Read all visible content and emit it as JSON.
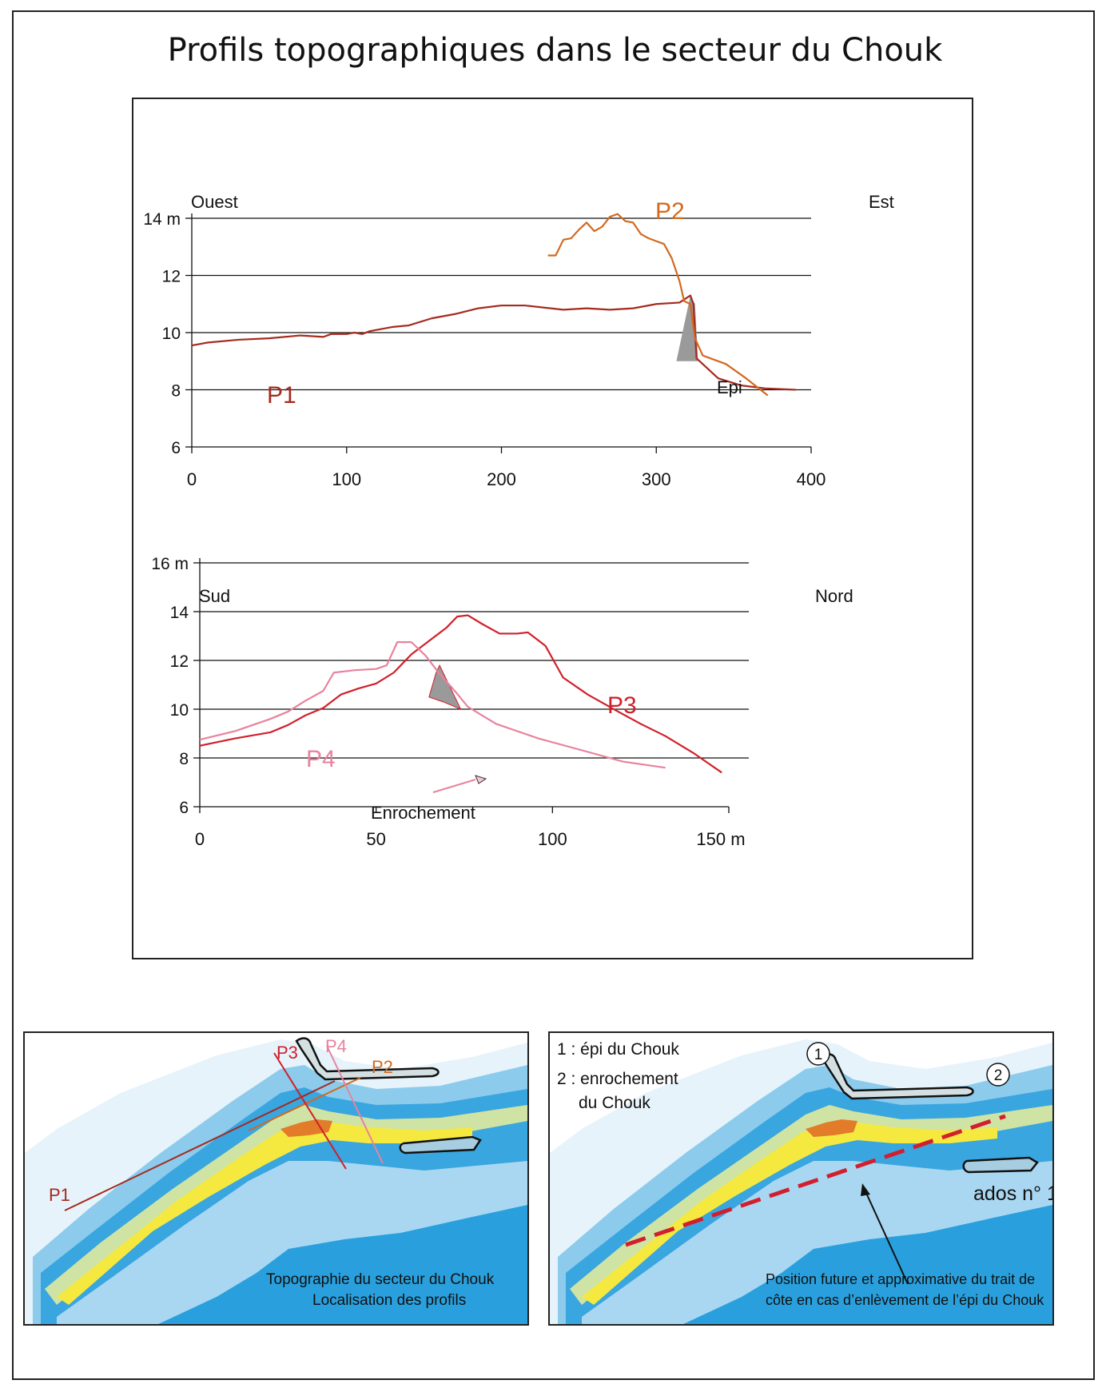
{
  "title": "Profils topographiques dans le secteur du Chouk",
  "chart_data": [
    {
      "type": "line",
      "direction_left": "Ouest",
      "direction_right": "Est",
      "y_unit": "m",
      "x_ticks": [
        "0",
        "100",
        "200",
        "300",
        "400"
      ],
      "y_ticks": [
        "6",
        "8",
        "10",
        "12",
        "14 m"
      ],
      "xlim": [
        0,
        400
      ],
      "ylim": [
        6,
        14
      ],
      "grid": "horizontal",
      "annotation": "Epi",
      "structure_polygon": [
        [
          313,
          9.0
        ],
        [
          322,
          11.3
        ],
        [
          325,
          11.0
        ],
        [
          327,
          9.0
        ]
      ],
      "series": [
        {
          "name": "P1",
          "color": "#a52a1e",
          "points": [
            [
              0,
              9.55
            ],
            [
              10,
              9.65
            ],
            [
              30,
              9.75
            ],
            [
              50,
              9.8
            ],
            [
              70,
              9.9
            ],
            [
              85,
              9.85
            ],
            [
              90,
              9.95
            ],
            [
              100,
              9.95
            ],
            [
              105,
              10.0
            ],
            [
              110,
              9.95
            ],
            [
              115,
              10.05
            ],
            [
              130,
              10.2
            ],
            [
              140,
              10.25
            ],
            [
              155,
              10.5
            ],
            [
              170,
              10.65
            ],
            [
              185,
              10.85
            ],
            [
              200,
              10.95
            ],
            [
              215,
              10.95
            ],
            [
              240,
              10.8
            ],
            [
              255,
              10.85
            ],
            [
              270,
              10.8
            ],
            [
              285,
              10.85
            ],
            [
              300,
              11.0
            ],
            [
              315,
              11.05
            ],
            [
              322,
              11.3
            ],
            [
              324,
              11.0
            ],
            [
              326,
              9.1
            ],
            [
              340,
              8.4
            ],
            [
              355,
              8.15
            ],
            [
              370,
              8.05
            ],
            [
              390,
              8.0
            ]
          ]
        },
        {
          "name": "P2",
          "color": "#d2691e",
          "points": [
            [
              230,
              12.7
            ],
            [
              235,
              12.7
            ],
            [
              240,
              13.25
            ],
            [
              245,
              13.3
            ],
            [
              250,
              13.6
            ],
            [
              255,
              13.85
            ],
            [
              260,
              13.55
            ],
            [
              265,
              13.7
            ],
            [
              270,
              14.05
            ],
            [
              275,
              14.15
            ],
            [
              280,
              13.9
            ],
            [
              285,
              13.85
            ],
            [
              290,
              13.45
            ],
            [
              295,
              13.3
            ],
            [
              300,
              13.2
            ],
            [
              305,
              13.1
            ],
            [
              310,
              12.6
            ],
            [
              315,
              11.8
            ],
            [
              318,
              11.1
            ],
            [
              322,
              11.0
            ],
            [
              325,
              9.8
            ],
            [
              330,
              9.2
            ],
            [
              345,
              8.9
            ],
            [
              358,
              8.4
            ],
            [
              372,
              7.8
            ]
          ]
        }
      ]
    },
    {
      "type": "line",
      "direction_left": "Sud",
      "direction_right": "Nord",
      "y_unit": "m",
      "x_ticks": [
        "0",
        "50",
        "100",
        "150 m"
      ],
      "y_ticks": [
        "6",
        "8",
        "10",
        "12",
        "14",
        "16 m"
      ],
      "xlim": [
        0,
        150
      ],
      "ylim": [
        6,
        16
      ],
      "grid": "horizontal",
      "annotation": "Enrochement",
      "structure_polygon": [
        [
          65,
          10.5
        ],
        [
          67,
          11.5
        ],
        [
          68,
          11.8
        ],
        [
          71,
          10.9
        ],
        [
          74,
          10.0
        ],
        [
          69,
          10.3
        ]
      ],
      "series": [
        {
          "name": "P3",
          "color": "#d11f2a",
          "points": [
            [
              0,
              8.5
            ],
            [
              10,
              8.8
            ],
            [
              20,
              9.05
            ],
            [
              25,
              9.35
            ],
            [
              30,
              9.75
            ],
            [
              35,
              10.05
            ],
            [
              40,
              10.6
            ],
            [
              45,
              10.85
            ],
            [
              50,
              11.05
            ],
            [
              55,
              11.5
            ],
            [
              60,
              12.25
            ],
            [
              65,
              12.8
            ],
            [
              70,
              13.35
            ],
            [
              73,
              13.8
            ],
            [
              76,
              13.85
            ],
            [
              80,
              13.5
            ],
            [
              85,
              13.1
            ],
            [
              90,
              13.1
            ],
            [
              93,
              13.15
            ],
            [
              98,
              12.6
            ],
            [
              103,
              11.3
            ],
            [
              110,
              10.6
            ],
            [
              118,
              9.95
            ],
            [
              125,
              9.4
            ],
            [
              132,
              8.9
            ],
            [
              140,
              8.2
            ],
            [
              148,
              7.4
            ]
          ]
        },
        {
          "name": "P4",
          "color": "#e8829d",
          "points": [
            [
              0,
              8.75
            ],
            [
              10,
              9.1
            ],
            [
              20,
              9.6
            ],
            [
              25,
              9.9
            ],
            [
              30,
              10.35
            ],
            [
              35,
              10.75
            ],
            [
              38,
              11.5
            ],
            [
              44,
              11.6
            ],
            [
              50,
              11.65
            ],
            [
              53,
              11.8
            ],
            [
              56,
              12.75
            ],
            [
              60,
              12.75
            ],
            [
              64,
              12.2
            ],
            [
              68,
              11.45
            ],
            [
              72,
              10.8
            ],
            [
              76,
              10.1
            ],
            [
              84,
              9.4
            ],
            [
              96,
              8.8
            ],
            [
              110,
              8.25
            ],
            [
              120,
              7.85
            ],
            [
              132,
              7.6
            ]
          ]
        }
      ]
    }
  ],
  "map_left": {
    "labels": [
      "P1",
      "P2",
      "P3",
      "P4"
    ],
    "caption_line1": "Topographie du secteur du Chouk",
    "caption_line2": "Localisation des profils"
  },
  "map_right": {
    "legend_1": "1 : épi du Chouk",
    "legend_2a": "2 : enrochement",
    "legend_2b": "du Chouk",
    "marker_1": "1",
    "marker_2": "2",
    "ados_label": "ados n° 1",
    "caption_line1": "Position future et approximative du trait de",
    "caption_line2": "côte en cas d’enlèvement de l’épi du Chouk"
  }
}
